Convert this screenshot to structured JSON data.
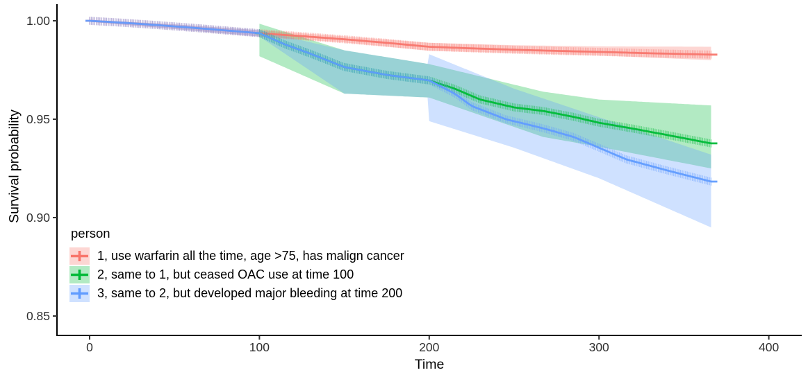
{
  "chart_data": {
    "type": "line",
    "description": "Survival probability step curves with plus-shaped censor tick texture and shaded confidence ribbons, ggplot2 style",
    "x_label": "Time",
    "y_label": "Survival probability",
    "x_ticks": [
      {
        "value": 0,
        "label": "0"
      },
      {
        "value": 100,
        "label": "100"
      },
      {
        "value": 200,
        "label": "200"
      },
      {
        "value": 300,
        "label": "300"
      },
      {
        "value": 400,
        "label": "400"
      }
    ],
    "y_ticks": [
      {
        "value": 1.0,
        "label": "1.00"
      },
      {
        "value": 0.95,
        "label": "0.95"
      },
      {
        "value": 0.9,
        "label": "0.90"
      },
      {
        "value": 0.85,
        "label": "0.85"
      }
    ],
    "x_range": [
      0,
      400
    ],
    "y_range": [
      0.84,
      1.005
    ],
    "grid": false,
    "legend": {
      "title": "person",
      "position": "inside bottom-left"
    },
    "series": [
      {
        "name": "person-1",
        "label": "1, use warfarin all the time, age >75, has malign cancer",
        "color": "#F8766D",
        "fill": "rgba(248,118,109,0.30)",
        "line": {
          "t": [
            0,
            20,
            40,
            60,
            80,
            100,
            125,
            150,
            175,
            200,
            225,
            250,
            275,
            300,
            330,
            366
          ],
          "p": [
            1.0,
            0.999,
            0.9978,
            0.9965,
            0.9951,
            0.9937,
            0.9922,
            0.9906,
            0.9888,
            0.9868,
            0.986,
            0.9853,
            0.9847,
            0.9842,
            0.9835,
            0.9828
          ]
        },
        "ribbon": {
          "t": [
            0,
            50,
            100,
            150,
            200,
            250,
            300,
            366
          ],
          "upper": [
            1.0005,
            0.9982,
            0.9952,
            0.9921,
            0.9888,
            0.9876,
            0.987,
            0.9868
          ],
          "lower": [
            0.9995,
            0.9958,
            0.992,
            0.989,
            0.9848,
            0.9836,
            0.9824,
            0.98
          ]
        }
      },
      {
        "name": "person-2",
        "label": "2, same to 1, but ceased OAC use at time 100",
        "color": "#00BA38",
        "fill": "rgba(0,186,56,0.30)",
        "line": {
          "t": [
            100,
            115,
            130,
            150,
            175,
            200,
            215,
            230,
            250,
            267,
            285,
            300,
            320,
            340,
            366
          ],
          "p": [
            0.9937,
            0.988,
            0.9833,
            0.9765,
            0.9725,
            0.9697,
            0.9655,
            0.96,
            0.956,
            0.9542,
            0.9512,
            0.9482,
            0.9452,
            0.942,
            0.9377
          ]
        },
        "ribbon": {
          "t": [
            100,
            150,
            200,
            267,
            300,
            366
          ],
          "upper": [
            0.9985,
            0.985,
            0.978,
            0.964,
            0.96,
            0.957
          ],
          "lower": [
            0.982,
            0.963,
            0.961,
            0.941,
            0.936,
            0.925
          ]
        }
      },
      {
        "name": "person-3",
        "label": "3, same to 2, but developed major bleeding at time 200",
        "color": "#619CFF",
        "fill": "rgba(97,156,255,0.30)",
        "line": {
          "t": [
            0,
            20,
            40,
            60,
            80,
            100,
            115,
            130,
            150,
            175,
            200,
            215,
            225,
            245,
            267,
            285,
            300,
            316,
            340,
            366
          ],
          "p": [
            1.0,
            0.999,
            0.9978,
            0.9965,
            0.9951,
            0.9937,
            0.988,
            0.9833,
            0.9765,
            0.9725,
            0.9697,
            0.963,
            0.9567,
            0.95,
            0.9454,
            0.941,
            0.9355,
            0.9296,
            0.924,
            0.9183
          ]
        },
        "ribbon": {
          "t": [
            0,
            50,
            100,
            150,
            199.99,
            200,
            250,
            300,
            366
          ],
          "upper": [
            1.0005,
            0.9982,
            0.9952,
            0.985,
            0.978,
            0.983,
            0.9655,
            0.951,
            0.932
          ],
          "lower": [
            0.9995,
            0.9958,
            0.992,
            0.963,
            0.961,
            0.949,
            0.9355,
            0.92,
            0.895
          ]
        }
      }
    ]
  }
}
